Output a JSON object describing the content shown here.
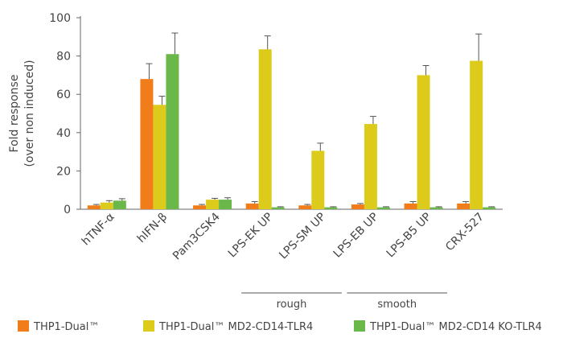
{
  "chart_data": {
    "type": "bar",
    "ylabel_lines": [
      "Fold response",
      "(over non induced)"
    ],
    "ylim": [
      0,
      100
    ],
    "yticks": [
      0,
      20,
      40,
      60,
      80,
      100
    ],
    "grid": false,
    "legend_position": "bottom",
    "categories": [
      "hTNF-α",
      "hIFN-β",
      "Pam3CSK4",
      "LPS-EK UP",
      "LPS-SM UP",
      "LPS-EB UP",
      "LPS-B5 UP",
      "CRX-527"
    ],
    "series": [
      {
        "name": "THP1-Dual™",
        "color": "#f07d1a",
        "values": [
          2,
          68,
          2,
          3,
          2,
          2.5,
          3,
          3
        ],
        "errors": [
          0.5,
          8,
          0.5,
          1,
          0.5,
          0.5,
          1,
          1
        ]
      },
      {
        "name": "THP1-Dual™ MD2-CD14-TLR4",
        "color": "#dccb1a",
        "values": [
          3.5,
          54.5,
          5,
          83.5,
          30.5,
          44.5,
          70,
          77.5
        ],
        "errors": [
          1,
          4.5,
          0.7,
          7,
          4,
          4,
          5,
          14
        ]
      },
      {
        "name": "THP1-Dual™ MD2-CD14 KO-TLR4",
        "color": "#6ab84a",
        "values": [
          4.5,
          81,
          5,
          1,
          1,
          1,
          1,
          1
        ],
        "errors": [
          1,
          11,
          1,
          0.3,
          0.3,
          0.3,
          0.3,
          0.3
        ]
      }
    ],
    "group_labels": [
      {
        "label": "rough",
        "from_category": 3,
        "to_category": 4
      },
      {
        "label": "smooth",
        "from_category": 5,
        "to_category": 6
      }
    ]
  }
}
